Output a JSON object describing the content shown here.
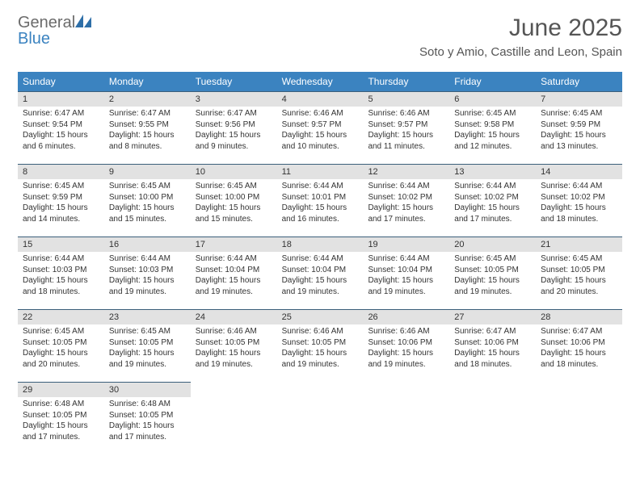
{
  "brand": {
    "part1": "General",
    "part2": "Blue"
  },
  "title": "June 2025",
  "location": "Soto y Amio, Castille and Leon, Spain",
  "weekdays": [
    "Sunday",
    "Monday",
    "Tuesday",
    "Wednesday",
    "Thursday",
    "Friday",
    "Saturday"
  ],
  "colors": {
    "headerBar": "#3b83c0",
    "dayBar": "#e2e2e2",
    "dayBarBorder": "#3b5f7a"
  },
  "days": [
    {
      "n": "1",
      "sr": "6:47 AM",
      "ss": "9:54 PM",
      "dl": "15 hours and 6 minutes."
    },
    {
      "n": "2",
      "sr": "6:47 AM",
      "ss": "9:55 PM",
      "dl": "15 hours and 8 minutes."
    },
    {
      "n": "3",
      "sr": "6:47 AM",
      "ss": "9:56 PM",
      "dl": "15 hours and 9 minutes."
    },
    {
      "n": "4",
      "sr": "6:46 AM",
      "ss": "9:57 PM",
      "dl": "15 hours and 10 minutes."
    },
    {
      "n": "5",
      "sr": "6:46 AM",
      "ss": "9:57 PM",
      "dl": "15 hours and 11 minutes."
    },
    {
      "n": "6",
      "sr": "6:45 AM",
      "ss": "9:58 PM",
      "dl": "15 hours and 12 minutes."
    },
    {
      "n": "7",
      "sr": "6:45 AM",
      "ss": "9:59 PM",
      "dl": "15 hours and 13 minutes."
    },
    {
      "n": "8",
      "sr": "6:45 AM",
      "ss": "9:59 PM",
      "dl": "15 hours and 14 minutes."
    },
    {
      "n": "9",
      "sr": "6:45 AM",
      "ss": "10:00 PM",
      "dl": "15 hours and 15 minutes."
    },
    {
      "n": "10",
      "sr": "6:45 AM",
      "ss": "10:00 PM",
      "dl": "15 hours and 15 minutes."
    },
    {
      "n": "11",
      "sr": "6:44 AM",
      "ss": "10:01 PM",
      "dl": "15 hours and 16 minutes."
    },
    {
      "n": "12",
      "sr": "6:44 AM",
      "ss": "10:02 PM",
      "dl": "15 hours and 17 minutes."
    },
    {
      "n": "13",
      "sr": "6:44 AM",
      "ss": "10:02 PM",
      "dl": "15 hours and 17 minutes."
    },
    {
      "n": "14",
      "sr": "6:44 AM",
      "ss": "10:02 PM",
      "dl": "15 hours and 18 minutes."
    },
    {
      "n": "15",
      "sr": "6:44 AM",
      "ss": "10:03 PM",
      "dl": "15 hours and 18 minutes."
    },
    {
      "n": "16",
      "sr": "6:44 AM",
      "ss": "10:03 PM",
      "dl": "15 hours and 19 minutes."
    },
    {
      "n": "17",
      "sr": "6:44 AM",
      "ss": "10:04 PM",
      "dl": "15 hours and 19 minutes."
    },
    {
      "n": "18",
      "sr": "6:44 AM",
      "ss": "10:04 PM",
      "dl": "15 hours and 19 minutes."
    },
    {
      "n": "19",
      "sr": "6:44 AM",
      "ss": "10:04 PM",
      "dl": "15 hours and 19 minutes."
    },
    {
      "n": "20",
      "sr": "6:45 AM",
      "ss": "10:05 PM",
      "dl": "15 hours and 19 minutes."
    },
    {
      "n": "21",
      "sr": "6:45 AM",
      "ss": "10:05 PM",
      "dl": "15 hours and 20 minutes."
    },
    {
      "n": "22",
      "sr": "6:45 AM",
      "ss": "10:05 PM",
      "dl": "15 hours and 20 minutes."
    },
    {
      "n": "23",
      "sr": "6:45 AM",
      "ss": "10:05 PM",
      "dl": "15 hours and 19 minutes."
    },
    {
      "n": "24",
      "sr": "6:46 AM",
      "ss": "10:05 PM",
      "dl": "15 hours and 19 minutes."
    },
    {
      "n": "25",
      "sr": "6:46 AM",
      "ss": "10:05 PM",
      "dl": "15 hours and 19 minutes."
    },
    {
      "n": "26",
      "sr": "6:46 AM",
      "ss": "10:06 PM",
      "dl": "15 hours and 19 minutes."
    },
    {
      "n": "27",
      "sr": "6:47 AM",
      "ss": "10:06 PM",
      "dl": "15 hours and 18 minutes."
    },
    {
      "n": "28",
      "sr": "6:47 AM",
      "ss": "10:06 PM",
      "dl": "15 hours and 18 minutes."
    },
    {
      "n": "29",
      "sr": "6:48 AM",
      "ss": "10:05 PM",
      "dl": "15 hours and 17 minutes."
    },
    {
      "n": "30",
      "sr": "6:48 AM",
      "ss": "10:05 PM",
      "dl": "15 hours and 17 minutes."
    }
  ],
  "labels": {
    "sunrise": "Sunrise: ",
    "sunset": "Sunset: ",
    "daylight": "Daylight: "
  }
}
